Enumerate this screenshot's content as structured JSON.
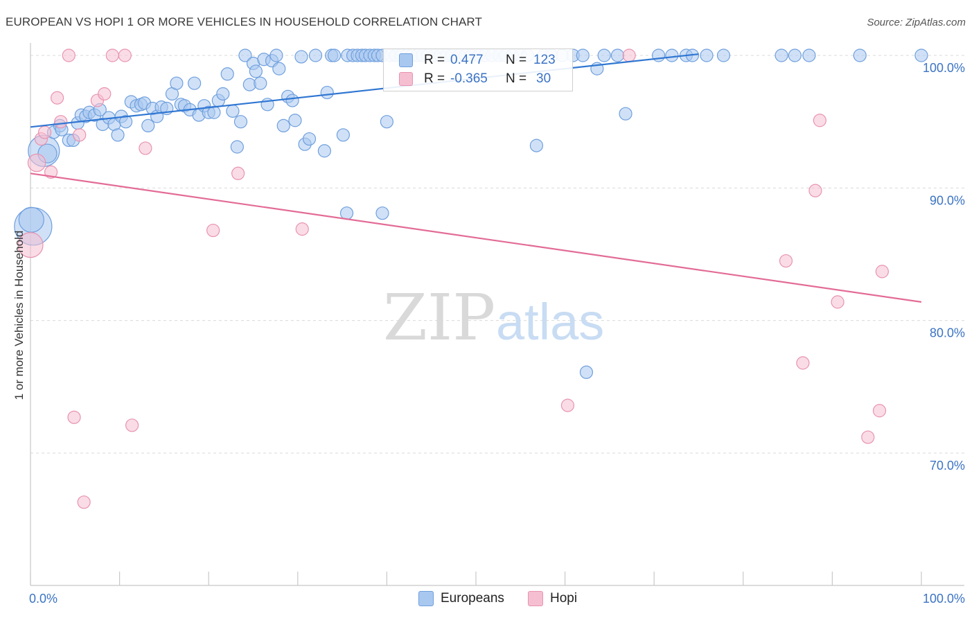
{
  "title": "EUROPEAN VS HOPI 1 OR MORE VEHICLES IN HOUSEHOLD CORRELATION CHART",
  "source": "Source: ZipAtlas.com",
  "colors": {
    "european_fill": "#a9c8f0",
    "european_stroke": "#6f9fdd",
    "european_line": "#2f76d2",
    "hopi_fill": "#f5bfd1",
    "hopi_stroke": "#e893b0",
    "hopi_line": "#e36b96",
    "value_text": "#3b73c4",
    "grid": "#d9d9d9"
  },
  "legend": {
    "european": {
      "r_label": "R =",
      "r_value": "0.477",
      "n_label": "N =",
      "n_value": "123"
    },
    "hopi": {
      "r_label": "R =",
      "r_value": "-0.365",
      "n_label": "N =",
      "n_value": "30"
    }
  },
  "bottom_legend": {
    "european": "Europeans",
    "hopi": "Hopi"
  },
  "watermark": {
    "zip": "ZIP",
    "atlas": "atlas"
  },
  "chart_data": {
    "type": "scatter",
    "title": "EUROPEAN VS HOPI 1 OR MORE VEHICLES IN HOUSEHOLD CORRELATION CHART",
    "xlabel": "",
    "ylabel": "1 or more Vehicles in Household",
    "xlim": [
      0,
      100
    ],
    "ylim": [
      60,
      101.5
    ],
    "x_tick_labels": [
      "0.0%",
      "100.0%"
    ],
    "y_ticks": [
      70,
      80,
      90,
      100
    ],
    "y_tick_labels": [
      "70.0%",
      "80.0%",
      "90.0%",
      "100.0%"
    ],
    "grid": true,
    "series": [
      {
        "name": "Europeans",
        "trend": {
          "x": [
            0,
            75
          ],
          "y": [
            94.6,
            100.1
          ]
        },
        "points": [
          [
            0.3,
            87.1,
            3
          ],
          [
            0.1,
            87.6,
            2
          ],
          [
            1.5,
            92.8,
            2.5
          ],
          [
            1.9,
            92.6,
            1.5
          ],
          [
            2.6,
            94.2,
            1
          ],
          [
            3.3,
            94.7,
            1
          ],
          [
            3.5,
            94.4,
            1
          ],
          [
            4.3,
            93.6,
            1
          ],
          [
            4.8,
            93.6,
            1
          ],
          [
            5.3,
            94.9,
            1
          ],
          [
            5.7,
            95.5,
            1
          ],
          [
            6.2,
            95.4,
            1
          ],
          [
            6.6,
            95.7,
            1
          ],
          [
            7.2,
            95.5,
            1
          ],
          [
            7.8,
            95.9,
            1
          ],
          [
            8.1,
            94.8,
            1
          ],
          [
            8.8,
            95.3,
            1
          ],
          [
            9.4,
            94.8,
            1
          ],
          [
            9.8,
            94.0,
            1
          ],
          [
            10.2,
            95.4,
            1
          ],
          [
            10.7,
            95.0,
            1
          ],
          [
            11.3,
            96.5,
            1
          ],
          [
            11.9,
            96.2,
            1
          ],
          [
            12.4,
            96.3,
            1
          ],
          [
            12.8,
            96.4,
            1
          ],
          [
            13.2,
            94.7,
            1
          ],
          [
            13.7,
            96.0,
            1
          ],
          [
            14.2,
            95.4,
            1
          ],
          [
            14.7,
            96.1,
            1
          ],
          [
            15.3,
            96.0,
            1
          ],
          [
            15.9,
            97.1,
            1
          ],
          [
            16.4,
            97.9,
            1
          ],
          [
            16.9,
            96.3,
            1
          ],
          [
            17.3,
            96.2,
            1
          ],
          [
            17.9,
            95.9,
            1
          ],
          [
            18.4,
            97.9,
            1
          ],
          [
            18.9,
            95.5,
            1
          ],
          [
            19.5,
            96.2,
            1
          ],
          [
            20.0,
            95.7,
            1
          ],
          [
            20.6,
            95.7,
            1
          ],
          [
            21.1,
            96.6,
            1
          ],
          [
            21.6,
            97.1,
            1
          ],
          [
            22.1,
            98.6,
            1
          ],
          [
            22.7,
            95.8,
            1
          ],
          [
            23.2,
            93.1,
            1
          ],
          [
            23.6,
            95.0,
            1
          ],
          [
            24.1,
            100.0,
            1
          ],
          [
            24.6,
            97.8,
            1
          ],
          [
            25.0,
            99.4,
            1
          ],
          [
            25.3,
            98.8,
            1
          ],
          [
            25.8,
            97.9,
            1
          ],
          [
            26.2,
            99.7,
            1
          ],
          [
            26.6,
            96.3,
            1
          ],
          [
            27.1,
            99.6,
            1
          ],
          [
            27.6,
            100.0,
            1
          ],
          [
            27.9,
            99.0,
            1
          ],
          [
            28.4,
            94.7,
            1
          ],
          [
            28.9,
            96.9,
            1
          ],
          [
            29.4,
            96.6,
            1
          ],
          [
            29.7,
            95.1,
            1
          ],
          [
            30.4,
            99.9,
            1
          ],
          [
            30.8,
            93.3,
            1
          ],
          [
            31.3,
            93.7,
            1
          ],
          [
            32.0,
            100.0,
            1
          ],
          [
            33.0,
            92.8,
            1
          ],
          [
            33.3,
            97.2,
            1
          ],
          [
            33.8,
            100.0,
            1
          ],
          [
            34.1,
            100.0,
            1
          ],
          [
            35.1,
            94.0,
            1
          ],
          [
            35.6,
            100.0,
            1
          ],
          [
            36.2,
            100.0,
            1
          ],
          [
            36.7,
            100.0,
            1
          ],
          [
            37.2,
            100.0,
            1
          ],
          [
            37.6,
            100.0,
            1
          ],
          [
            38.1,
            100.0,
            1
          ],
          [
            38.6,
            100.0,
            1
          ],
          [
            39.0,
            100.0,
            1
          ],
          [
            39.5,
            100.0,
            1
          ],
          [
            40.0,
            95.0,
            1
          ],
          [
            40.4,
            100.0,
            1
          ],
          [
            41.0,
            100.0,
            1
          ],
          [
            41.6,
            100.0,
            1
          ],
          [
            42.2,
            100.0,
            1
          ],
          [
            42.8,
            100.0,
            1
          ],
          [
            43.4,
            100.0,
            1
          ],
          [
            44.0,
            100.0,
            1
          ],
          [
            44.6,
            100.0,
            1
          ],
          [
            45.3,
            100.0,
            1
          ],
          [
            46.0,
            100.0,
            1
          ],
          [
            46.7,
            100.0,
            1
          ],
          [
            47.3,
            100.0,
            1
          ],
          [
            48.1,
            100.0,
            1
          ],
          [
            48.8,
            100.0,
            1
          ],
          [
            49.5,
            100.0,
            1
          ],
          [
            50.3,
            100.0,
            1
          ],
          [
            51.0,
            100.0,
            1
          ],
          [
            51.8,
            100.0,
            1
          ],
          [
            52.6,
            100.0,
            1
          ],
          [
            53.3,
            100.0,
            1
          ],
          [
            54.1,
            100.0,
            1
          ],
          [
            55.0,
            100.0,
            1
          ],
          [
            55.8,
            100.0,
            1
          ],
          [
            56.8,
            93.2,
            1
          ],
          [
            57.6,
            100.0,
            1
          ],
          [
            58.5,
            100.0,
            1
          ],
          [
            59.7,
            100.0,
            1
          ],
          [
            60.9,
            100.0,
            1
          ],
          [
            62.0,
            100.0,
            1
          ],
          [
            63.6,
            99.0,
            1
          ],
          [
            64.4,
            100.0,
            1
          ],
          [
            65.9,
            100.0,
            1
          ],
          [
            66.8,
            95.6,
            1
          ],
          [
            70.5,
            100.0,
            1
          ],
          [
            72.0,
            100.0,
            1
          ],
          [
            73.6,
            100.0,
            1
          ],
          [
            74.3,
            100.0,
            1
          ],
          [
            75.9,
            100.0,
            1
          ],
          [
            77.8,
            100.0,
            1
          ],
          [
            84.3,
            100.0,
            1
          ],
          [
            85.8,
            100.0,
            1
          ],
          [
            87.4,
            100.0,
            1
          ],
          [
            93.1,
            100.0,
            1
          ],
          [
            100.0,
            100.0,
            1
          ]
        ],
        "outliers": [
          [
            35.5,
            88.1,
            1
          ],
          [
            39.5,
            88.1,
            1
          ],
          [
            62.4,
            76.1,
            1
          ]
        ]
      },
      {
        "name": "Hopi",
        "trend": {
          "x": [
            0,
            100
          ],
          "y": [
            91.1,
            81.4
          ]
        },
        "points": [
          [
            0.0,
            85.7,
            2
          ],
          [
            0.7,
            91.9,
            1.4
          ],
          [
            1.2,
            93.7,
            1
          ],
          [
            1.6,
            94.2,
            1
          ],
          [
            2.3,
            91.2,
            1
          ],
          [
            3.0,
            96.8,
            1
          ],
          [
            3.4,
            95.0,
            1
          ],
          [
            4.3,
            100.0,
            1
          ],
          [
            4.9,
            72.7,
            1
          ],
          [
            5.5,
            94.0,
            1
          ],
          [
            6.0,
            66.3,
            1
          ],
          [
            7.5,
            96.6,
            1
          ],
          [
            8.3,
            97.1,
            1
          ],
          [
            9.2,
            100.0,
            1
          ],
          [
            10.6,
            100.0,
            1
          ],
          [
            11.4,
            72.1,
            1
          ],
          [
            12.9,
            93.0,
            1
          ],
          [
            20.5,
            86.8,
            1
          ],
          [
            23.3,
            91.1,
            1
          ],
          [
            30.5,
            86.9,
            1
          ],
          [
            60.3,
            73.6,
            1
          ],
          [
            67.2,
            100.0,
            1
          ],
          [
            84.8,
            84.5,
            1
          ],
          [
            86.7,
            76.8,
            1
          ],
          [
            88.1,
            89.8,
            1
          ],
          [
            88.6,
            95.1,
            1
          ],
          [
            90.6,
            81.4,
            1
          ],
          [
            94.0,
            71.2,
            1
          ],
          [
            95.3,
            73.2,
            1
          ],
          [
            95.6,
            83.7,
            1
          ]
        ]
      }
    ]
  }
}
